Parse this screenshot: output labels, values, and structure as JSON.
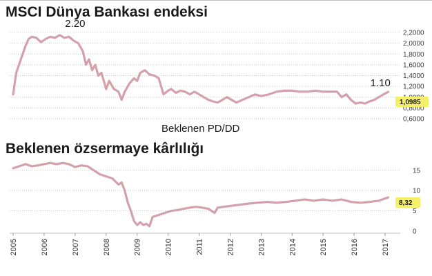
{
  "colors": {
    "line": "#d4a0aa",
    "grid": "#c8c8c8",
    "badge": "#f6ef6a"
  },
  "chart_data": [
    {
      "type": "line",
      "title": "MSCI Dünya Bankası endeksi",
      "annotations": [
        {
          "text": "2.20",
          "x": 2007.0,
          "y": 2.2
        },
        {
          "text": "1.10",
          "x": 2016.85,
          "y": 1.1
        }
      ],
      "note": "Beklenen PD/DD",
      "last_value_label": "1,0985",
      "ylim": [
        0.6,
        2.2
      ],
      "yticks": [
        0.6,
        0.8,
        1.0,
        1.2,
        1.4,
        1.6,
        1.8,
        2.0,
        2.2
      ],
      "ytick_labels": [
        "0,6000",
        "0,8000",
        "1,0000",
        "1,2000",
        "1,4000",
        "1,6000",
        "1,8000",
        "2,0000",
        "2,2000"
      ],
      "grid": true,
      "x": [
        2005.0,
        2005.1,
        2005.25,
        2005.4,
        2005.5,
        2005.6,
        2005.75,
        2005.9,
        2006.05,
        2006.2,
        2006.35,
        2006.5,
        2006.65,
        2006.8,
        2006.95,
        2007.1,
        2007.25,
        2007.35,
        2007.45,
        2007.55,
        2007.65,
        2007.75,
        2007.85,
        2008.0,
        2008.1,
        2008.25,
        2008.4,
        2008.5,
        2008.6,
        2008.75,
        2008.9,
        2009.0,
        2009.1,
        2009.25,
        2009.4,
        2009.55,
        2009.7,
        2009.85,
        2010.0,
        2010.1,
        2010.25,
        2010.4,
        2010.55,
        2010.7,
        2010.85,
        2011.0,
        2011.15,
        2011.3,
        2011.45,
        2011.6,
        2011.75,
        2011.9,
        2012.05,
        2012.2,
        2012.4,
        2012.6,
        2012.8,
        2013.0,
        2013.25,
        2013.5,
        2013.75,
        2014.0,
        2014.25,
        2014.5,
        2014.75,
        2015.0,
        2015.25,
        2015.45,
        2015.6,
        2015.75,
        2015.9,
        2016.05,
        2016.2,
        2016.35,
        2016.5,
        2016.65,
        2016.8,
        2016.95,
        2017.1
      ],
      "y": [
        1.05,
        1.45,
        1.7,
        1.95,
        2.08,
        2.12,
        2.1,
        2.02,
        2.08,
        2.12,
        2.1,
        2.15,
        2.1,
        2.12,
        2.05,
        2.0,
        1.85,
        1.6,
        1.7,
        1.5,
        1.6,
        1.4,
        1.45,
        1.15,
        1.3,
        1.15,
        1.1,
        0.95,
        1.1,
        1.25,
        1.35,
        1.3,
        1.45,
        1.5,
        1.42,
        1.4,
        1.35,
        1.05,
        1.12,
        1.15,
        1.08,
        1.12,
        1.1,
        1.05,
        1.1,
        1.05,
        1.0,
        0.95,
        0.92,
        0.9,
        0.95,
        1.0,
        0.95,
        0.9,
        0.95,
        1.0,
        1.05,
        1.02,
        1.05,
        1.1,
        1.12,
        1.12,
        1.1,
        1.1,
        1.12,
        1.1,
        1.1,
        1.1,
        1.0,
        1.05,
        0.95,
        0.88,
        0.9,
        0.88,
        0.92,
        0.95,
        1.0,
        1.05,
        1.0985
      ]
    },
    {
      "type": "line",
      "title": "Beklenen özsermaye kârlılığı",
      "last_value_label": "8,32",
      "ylim": [
        0,
        17
      ],
      "yticks": [
        0,
        5,
        10,
        15
      ],
      "ytick_labels": [
        "0",
        "5",
        "10",
        "15"
      ],
      "grid": true,
      "xlim": [
        2005,
        2017.2
      ],
      "xticks": [
        2005,
        2006,
        2007,
        2008,
        2009,
        2010,
        2011,
        2012,
        2013,
        2014,
        2015,
        2016,
        2017
      ],
      "xtick_labels": [
        "2005",
        "2006",
        "2007",
        "2008",
        "2009",
        "2010",
        "2011",
        "2012",
        "2013",
        "2014",
        "2015",
        "2016",
        "2017"
      ],
      "x": [
        2005.0,
        2005.2,
        2005.4,
        2005.6,
        2005.8,
        2006.0,
        2006.2,
        2006.4,
        2006.6,
        2006.8,
        2007.0,
        2007.2,
        2007.4,
        2007.6,
        2007.8,
        2008.0,
        2008.2,
        2008.4,
        2008.5,
        2008.6,
        2008.7,
        2008.8,
        2008.9,
        2009.0,
        2009.1,
        2009.2,
        2009.3,
        2009.4,
        2009.5,
        2009.7,
        2009.9,
        2010.1,
        2010.3,
        2010.5,
        2010.7,
        2010.9,
        2011.1,
        2011.3,
        2011.5,
        2011.6,
        2011.8,
        2012.0,
        2012.3,
        2012.6,
        2012.9,
        2013.2,
        2013.5,
        2013.8,
        2014.1,
        2014.4,
        2014.7,
        2015.0,
        2015.3,
        2015.6,
        2015.9,
        2016.2,
        2016.5,
        2016.8,
        2017.1
      ],
      "y": [
        15.5,
        16.0,
        16.5,
        16.0,
        16.2,
        16.5,
        16.8,
        16.5,
        16.8,
        16.5,
        15.8,
        16.2,
        16.0,
        15.0,
        14.0,
        13.5,
        13.0,
        11.5,
        12.0,
        10.0,
        7.0,
        5.0,
        2.5,
        1.5,
        2.2,
        1.5,
        1.8,
        1.2,
        3.5,
        4.0,
        4.5,
        5.0,
        5.2,
        5.5,
        5.8,
        6.0,
        5.8,
        5.5,
        4.5,
        5.8,
        6.0,
        6.2,
        6.5,
        6.8,
        7.0,
        7.2,
        7.0,
        7.2,
        7.5,
        7.8,
        7.5,
        7.8,
        7.5,
        7.8,
        7.2,
        7.0,
        7.2,
        7.5,
        8.32
      ]
    }
  ]
}
